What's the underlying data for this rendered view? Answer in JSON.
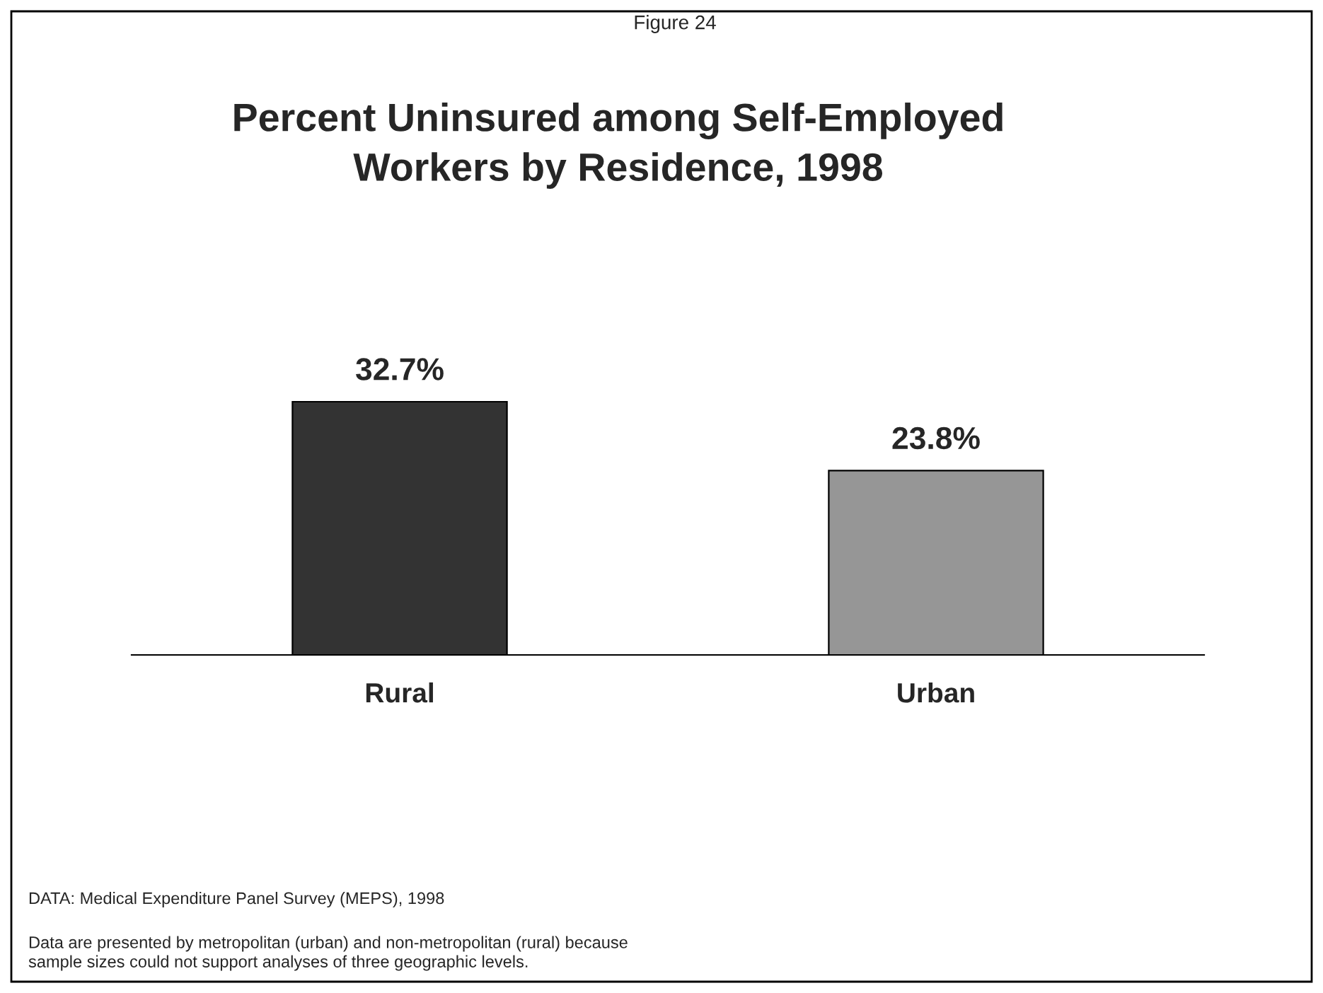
{
  "chart_data": {
    "type": "bar",
    "subtitle": "Figure 24",
    "title": "Percent Uninsured among Self-Employed\nWorkers by Residence, 1998",
    "categories": [
      "Rural",
      "Urban"
    ],
    "values": [
      32.7,
      23.8
    ],
    "colors": [
      "#333333",
      "#969696"
    ],
    "value_labels": [
      "32.7%",
      "23.8%"
    ],
    "grid": false,
    "legend": false,
    "annotations": [
      "DATA: Medical Expenditure Panel Survey (MEPS), 1998",
      "Data are presented by metropolitan (urban) and non-metropolitan (rural) because\nsample sizes could not support analyses of three geographic levels."
    ]
  }
}
